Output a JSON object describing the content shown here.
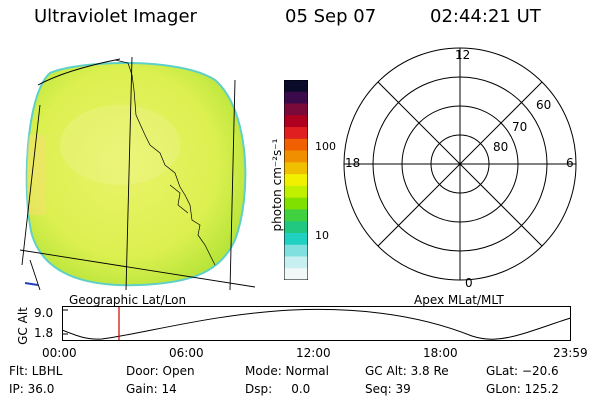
{
  "header": {
    "instrument": "Ultraviolet Imager",
    "date": "05 Sep 07",
    "time": "02:44:21 UT"
  },
  "image_panel": {
    "projection_label": "Geographic Lat/Lon"
  },
  "colorbar": {
    "unit_label": "photon cm⁻²s⁻¹",
    "tick_labels": [
      "100",
      "10"
    ],
    "colors": [
      "#0a0a2a",
      "#3a0a4a",
      "#7a0a3a",
      "#b00020",
      "#e02020",
      "#f06000",
      "#f09000",
      "#f0c000",
      "#f0f000",
      "#c0f000",
      "#80e000",
      "#40d040",
      "#20c880",
      "#20d0c0",
      "#80e0e0",
      "#c8f0f0",
      "#f0f8f8"
    ]
  },
  "polar_plot": {
    "label": "Apex MLat/MLT",
    "mlt_labels": [
      "12",
      "18",
      "6",
      "0"
    ],
    "lat_labels": [
      "60",
      "70",
      "80"
    ]
  },
  "altitude_plot": {
    "ylabel": "GC Alt",
    "yticks": [
      "9.0",
      "1.8"
    ],
    "xticks": [
      "00:00",
      "06:00",
      "12:00",
      "18:00",
      "23:59"
    ],
    "marker_time": "02:44",
    "marker_color": "#cc0000"
  },
  "info": {
    "flt": "Flt: LBHL",
    "door": "Door: Open",
    "mode": "Mode: Normal",
    "gc_alt": "GC Alt: 3.8 Re",
    "glat": "GLat: −20.6",
    "ip": "IP: 36.0",
    "gain": "Gain: 14",
    "dsp": "Dsp:     0.0",
    "seq": "Seq: 39",
    "glon": "GLon: 125.2"
  }
}
